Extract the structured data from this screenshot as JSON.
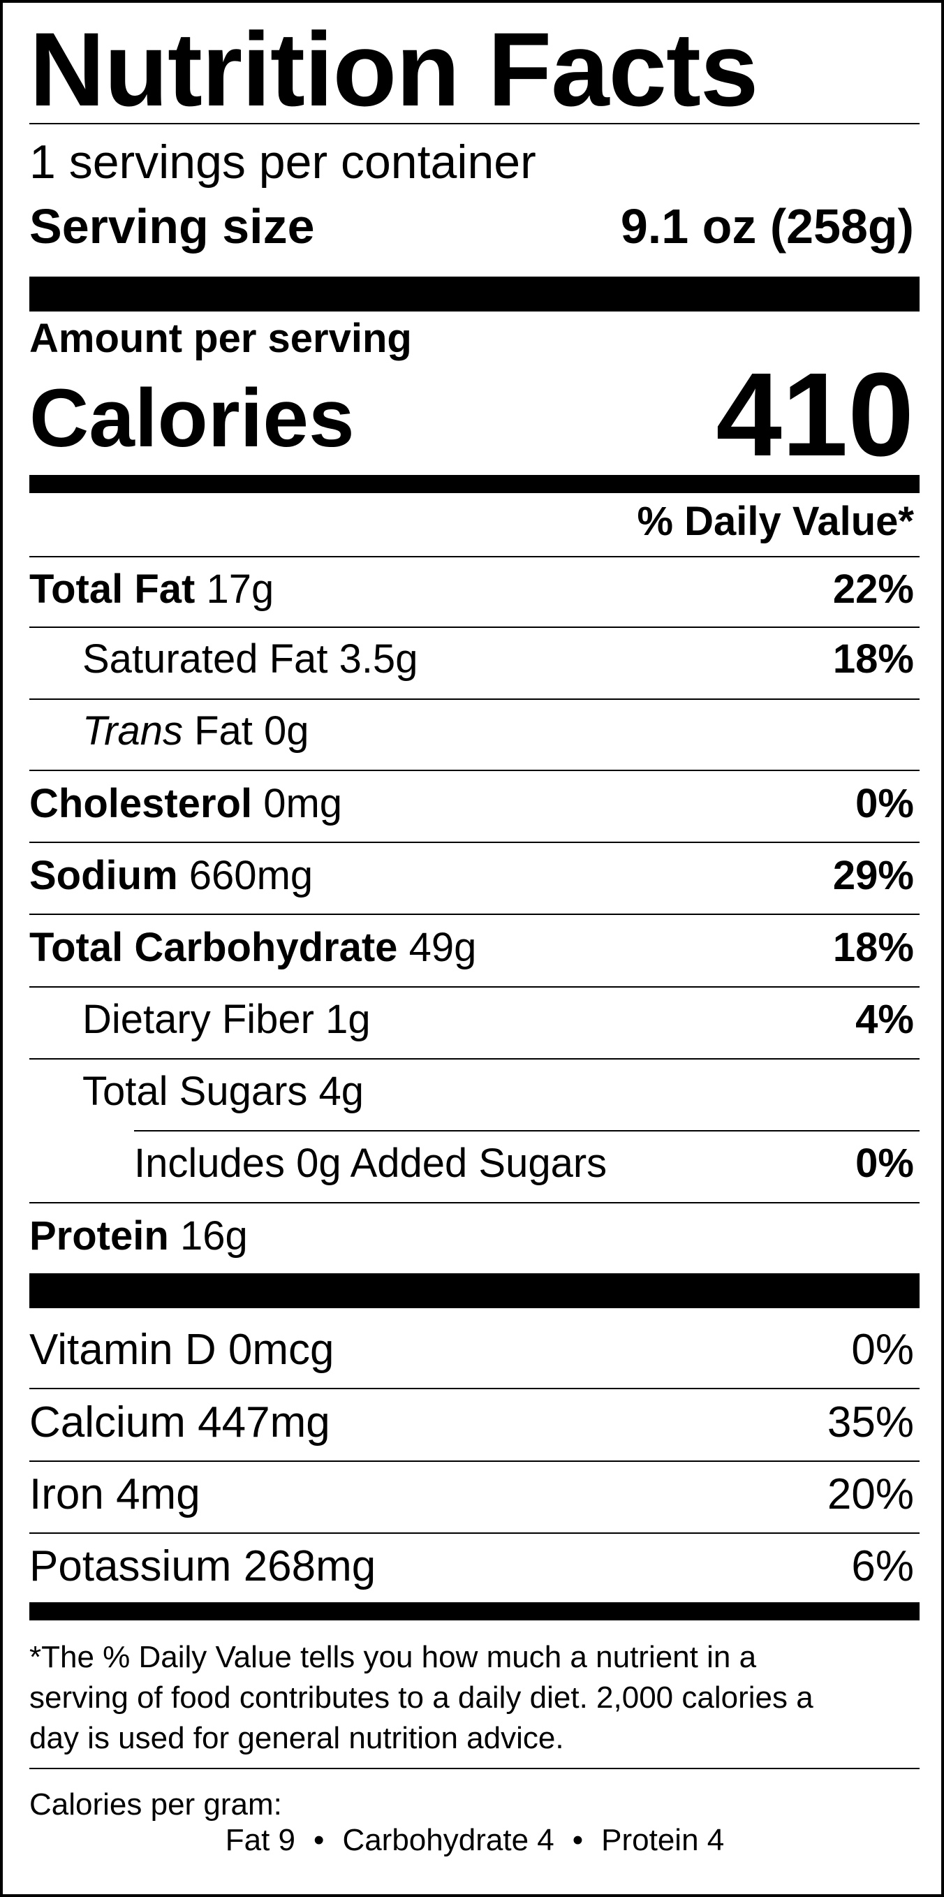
{
  "title": "Nutrition Facts",
  "servings_per_container": "1 servings per container",
  "serving_size": {
    "label": "Serving size",
    "value": "9.1 oz (258g)"
  },
  "amount_per_serving": "Amount per serving",
  "calories": {
    "label": "Calories",
    "value": "410"
  },
  "daily_value_header": "% Daily Value*",
  "nutrients": [
    {
      "name": "Total Fat",
      "amount": "17g",
      "dv": "22%"
    },
    {
      "name": "Saturated Fat",
      "amount": "3.5g",
      "dv": "18%"
    },
    {
      "name_italic": "Trans",
      "name": "Fat",
      "amount": "0g",
      "dv": ""
    },
    {
      "name": "Cholesterol",
      "amount": "0mg",
      "dv": "0%"
    },
    {
      "name": "Sodium",
      "amount": "660mg",
      "dv": "29%"
    },
    {
      "name": "Total Carbohydrate",
      "amount": "49g",
      "dv": "18%"
    },
    {
      "name": "Dietary Fiber",
      "amount": "1g",
      "dv": "4%"
    },
    {
      "name": "Total Sugars",
      "amount": "4g",
      "dv": ""
    },
    {
      "name": "Includes 0g Added Sugars",
      "amount": "",
      "dv": "0%"
    },
    {
      "name": "Protein",
      "amount": "16g",
      "dv": ""
    }
  ],
  "vitamins": [
    {
      "name": "Vitamin D",
      "amount": "0mcg",
      "dv": "0%"
    },
    {
      "name": "Calcium",
      "amount": "447mg",
      "dv": "35%"
    },
    {
      "name": "Iron",
      "amount": "4mg",
      "dv": "20%"
    },
    {
      "name": "Potassium",
      "amount": "268mg",
      "dv": "6%"
    }
  ],
  "footnote": [
    "*The % Daily Value tells you how much a nutrient in a",
    "serving of food contributes to a daily diet. 2,000 calories a",
    "day is used for general nutrition advice."
  ],
  "calories_per_gram": {
    "label": "Calories per gram:",
    "items": [
      "Fat 9",
      "Carbohydrate 4",
      "Protein 4"
    ],
    "separator": "•"
  }
}
